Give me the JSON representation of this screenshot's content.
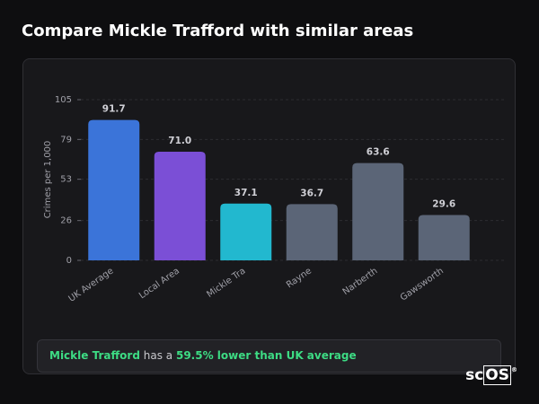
{
  "chart_data": {
    "type": "bar",
    "title": "Compare Mickle Trafford with similar areas",
    "y_label": "Crimes per 1,000",
    "categories": [
      "UK Average",
      "Local Area",
      "Mickle Tra",
      "Rayne",
      "Narberth",
      "Gawsworth"
    ],
    "values": [
      91.7,
      71.0,
      37.1,
      36.7,
      63.6,
      29.6
    ],
    "value_labels": [
      "91.7",
      "71.0",
      "37.1",
      "36.7",
      "63.6",
      "29.6"
    ],
    "colors": [
      "#3b74d9",
      "#7b4fd6",
      "#22b8cf",
      "#5b6577",
      "#5b6577",
      "#5b6577"
    ],
    "ylim": [
      0,
      105
    ],
    "yticks": [
      0,
      26,
      53,
      79,
      105
    ],
    "grid": true
  },
  "note": {
    "place": "Mickle Trafford",
    "text": "has a",
    "highlight": "59.5% lower than UK average"
  },
  "logo": {
    "prefix": "sc",
    "boxed": "OS",
    "mark": "®"
  }
}
